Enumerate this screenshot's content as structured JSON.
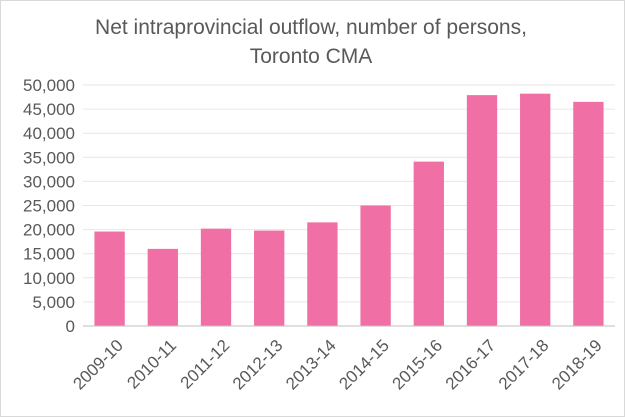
{
  "chart_data": {
    "type": "bar",
    "title": "Net intraprovincial outflow, number of persons, Toronto CMA",
    "xlabel": "",
    "ylabel": "",
    "categories": [
      "2009-10",
      "2010-11",
      "2011-12",
      "2012-13",
      "2013-14",
      "2014-15",
      "2015-16",
      "2016-17",
      "2017-18",
      "2018-19"
    ],
    "values": [
      19600,
      16000,
      20200,
      19800,
      21500,
      25000,
      34100,
      47900,
      48200,
      46500
    ],
    "ylim": [
      0,
      50000
    ],
    "yticks": [
      "0",
      "5,000",
      "10,000",
      "15,000",
      "20,000",
      "25,000",
      "30,000",
      "35,000",
      "40,000",
      "45,000",
      "50,000"
    ],
    "ytick_values": [
      0,
      5000,
      10000,
      15000,
      20000,
      25000,
      30000,
      35000,
      40000,
      45000,
      50000
    ],
    "grid": true,
    "legend": "none",
    "bar_color": "#f06fa5",
    "grid_color": "#e6e6e6",
    "axis_color": "#bfbfbf",
    "text_color": "#595959"
  }
}
